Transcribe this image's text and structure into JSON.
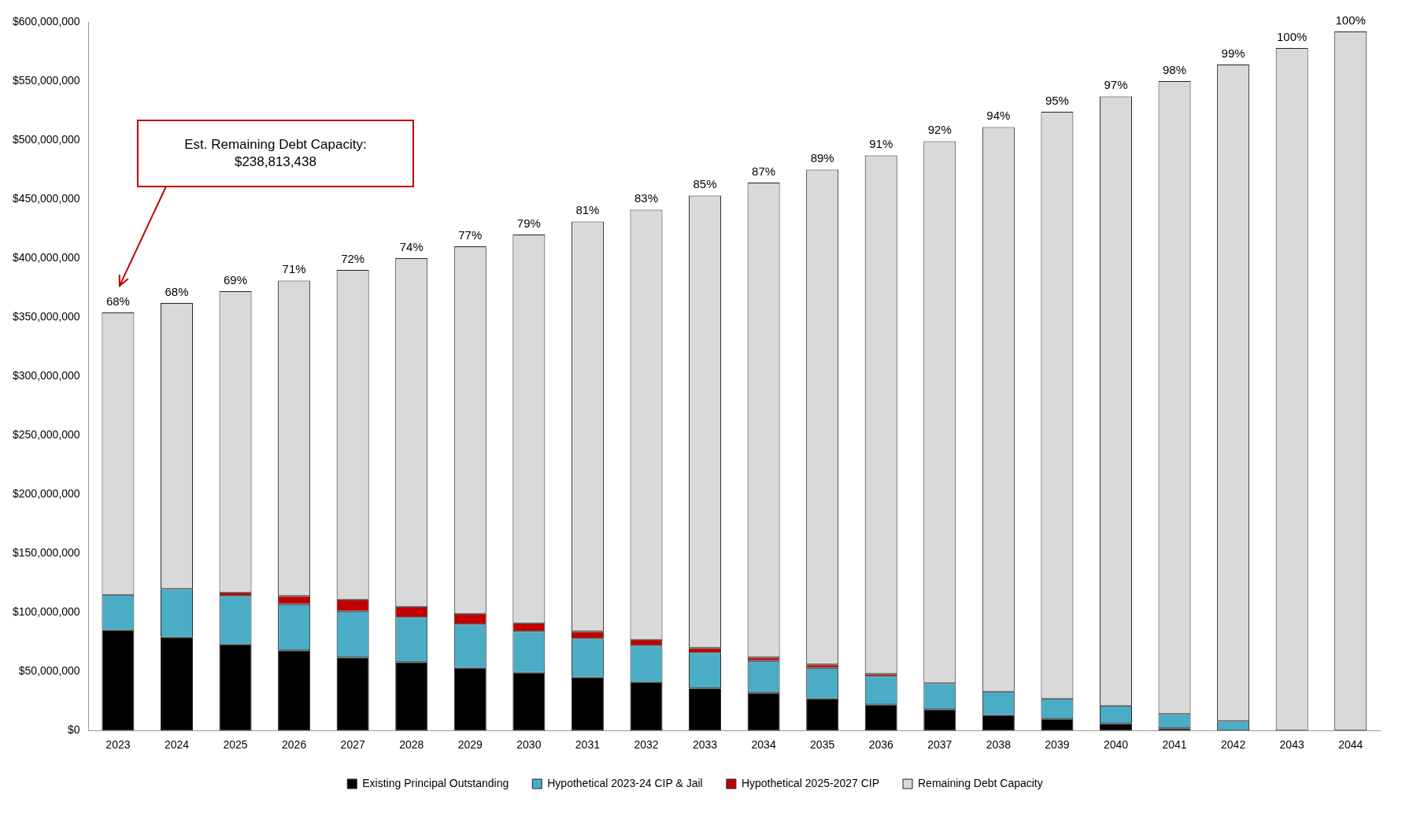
{
  "chart_data": {
    "type": "bar",
    "stacked": true,
    "categories": [
      "2023",
      "2024",
      "2025",
      "2026",
      "2027",
      "2028",
      "2029",
      "2030",
      "2031",
      "2032",
      "2033",
      "2034",
      "2035",
      "2036",
      "2037",
      "2038",
      "2039",
      "2040",
      "2041",
      "2042",
      "2043",
      "2044"
    ],
    "series": [
      {
        "name": "Existing Principal Outstanding",
        "color": "#000000",
        "values": [
          85000000,
          79000000,
          73000000,
          68000000,
          62000000,
          58000000,
          53000000,
          49000000,
          45000000,
          41000000,
          36000000,
          32000000,
          27000000,
          22000000,
          18000000,
          13000000,
          10000000,
          6000000,
          2000000,
          0,
          0,
          0
        ]
      },
      {
        "name": "Hypothetical 2023-24 CIP & Jail",
        "color": "#4bacc6",
        "values": [
          30000000,
          41000000,
          41000000,
          39000000,
          39000000,
          38000000,
          37000000,
          35000000,
          33000000,
          31000000,
          30000000,
          27000000,
          26000000,
          24000000,
          22000000,
          20000000,
          17000000,
          15000000,
          12000000,
          8000000,
          0,
          0
        ]
      },
      {
        "name": "Hypothetical 2025-2027 CIP",
        "color": "#c00000",
        "values": [
          0,
          0,
          3000000,
          7000000,
          10000000,
          9000000,
          9000000,
          7000000,
          6000000,
          5000000,
          4000000,
          3000000,
          3000000,
          2000000,
          0,
          0,
          0,
          0,
          0,
          0,
          0,
          0
        ]
      },
      {
        "name": "Remaining Debt Capacity",
        "color": "#d9d9d9",
        "values": [
          239000000,
          242000000,
          255000000,
          267000000,
          279000000,
          295000000,
          311000000,
          329000000,
          347000000,
          364000000,
          383000000,
          402000000,
          419000000,
          439000000,
          459000000,
          478000000,
          497000000,
          516000000,
          536000000,
          556000000,
          578000000,
          592000000
        ]
      }
    ],
    "ylim": [
      0,
      600000000
    ],
    "yticks": [
      {
        "value": 0,
        "label": "$0"
      },
      {
        "value": 50000000,
        "label": "$50,000,000"
      },
      {
        "value": 100000000,
        "label": "$100,000,000"
      },
      {
        "value": 150000000,
        "label": "$150,000,000"
      },
      {
        "value": 200000000,
        "label": "$200,000,000"
      },
      {
        "value": 250000000,
        "label": "$250,000,000"
      },
      {
        "value": 300000000,
        "label": "$300,000,000"
      },
      {
        "value": 350000000,
        "label": "$350,000,000"
      },
      {
        "value": 400000000,
        "label": "$400,000,000"
      },
      {
        "value": 450000000,
        "label": "$450,000,000"
      },
      {
        "value": 500000000,
        "label": "$500,000,000"
      },
      {
        "value": 550000000,
        "label": "$550,000,000"
      },
      {
        "value": 600000000,
        "label": "$600,000,000"
      }
    ],
    "grid": false,
    "legend": "bottom",
    "annotations": [
      "Est. Remaining Debt Capacity:\n$238,813,438",
      {
        "text": "68%",
        "x": "2023",
        "y": 354000000
      },
      {
        "text": "68%",
        "x": "2024",
        "y": 362000000
      },
      {
        "text": "69%",
        "x": "2025",
        "y": 372000000
      },
      {
        "text": "71%",
        "x": "2026",
        "y": 381000000
      },
      {
        "text": "72%",
        "x": "2027",
        "y": 390000000
      },
      {
        "text": "74%",
        "x": "2028",
        "y": 400000000
      },
      {
        "text": "77%",
        "x": "2029",
        "y": 410000000
      },
      {
        "text": "79%",
        "x": "2030",
        "y": 420000000
      },
      {
        "text": "81%",
        "x": "2031",
        "y": 431000000
      },
      {
        "text": "83%",
        "x": "2032",
        "y": 441000000
      },
      {
        "text": "85%",
        "x": "2033",
        "y": 453000000
      },
      {
        "text": "87%",
        "x": "2034",
        "y": 464000000
      },
      {
        "text": "89%",
        "x": "2035",
        "y": 475000000
      },
      {
        "text": "91%",
        "x": "2036",
        "y": 487000000
      },
      {
        "text": "92%",
        "x": "2037",
        "y": 499000000
      },
      {
        "text": "94%",
        "x": "2038",
        "y": 511000000
      },
      {
        "text": "95%",
        "x": "2039",
        "y": 524000000
      },
      {
        "text": "97%",
        "x": "2040",
        "y": 537000000
      },
      {
        "text": "98%",
        "x": "2041",
        "y": 550000000
      },
      {
        "text": "99%",
        "x": "2042",
        "y": 564000000
      },
      {
        "text": "100%",
        "x": "2043",
        "y": 578000000
      },
      {
        "text": "100%",
        "x": "2044",
        "y": 592000000
      }
    ]
  }
}
